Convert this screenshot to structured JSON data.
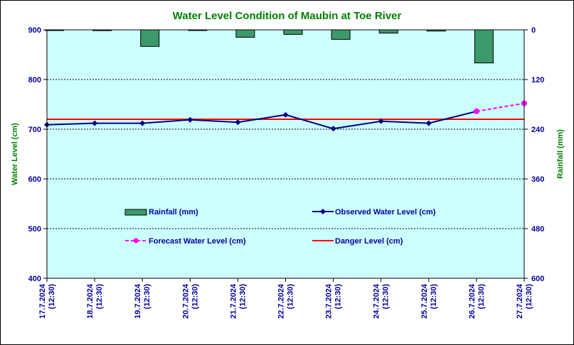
{
  "chart_data": {
    "type": "line",
    "title": "Water Level Condition of  Maubin at Toe River",
    "ylabel_left": "Water Level (cm)",
    "ylabel_right": "Rainfall (mm)",
    "ylim_left": [
      400,
      900
    ],
    "yticks_left": [
      "400",
      "500",
      "600",
      "700",
      "800",
      "900"
    ],
    "ylim_right_inverted": [
      0,
      600
    ],
    "yticks_right": [
      "0",
      "120",
      "240",
      "360",
      "480",
      "600"
    ],
    "categories": [
      {
        "date": "17.7.2024",
        "time": "(12:30)"
      },
      {
        "date": "18.7.2024",
        "time": "(12:30)"
      },
      {
        "date": "19.7.2024",
        "time": "(12:30)"
      },
      {
        "date": "20.7.2024",
        "time": "(12:30)"
      },
      {
        "date": "21.7.2024",
        "time": "(12:30)"
      },
      {
        "date": "22.7.2024",
        "time": "(12:30)"
      },
      {
        "date": "23.7.2024",
        "time": "(12:30)"
      },
      {
        "date": "24.7.2024",
        "time": "(12:30)"
      },
      {
        "date": "25.7.2024",
        "time": "(12:30)"
      },
      {
        "date": "26.7.2024",
        "time": "(12:30)"
      },
      {
        "date": "27.7.2024",
        "time": "(12:30)"
      }
    ],
    "series": [
      {
        "name": "Rainfall (mm)",
        "kind": "bar",
        "axis": "right",
        "color": "#3a9a6a",
        "values": [
          1,
          2,
          40,
          1,
          18,
          11,
          23,
          8,
          3,
          80,
          null
        ]
      },
      {
        "name": "Observed Water Level (cm)",
        "kind": "line",
        "axis": "left",
        "color": "#000080",
        "values": [
          709,
          712,
          712,
          719,
          714,
          729,
          701,
          716,
          712,
          736,
          null
        ]
      },
      {
        "name": "Forecast Water Level (cm)",
        "kind": "dashed",
        "axis": "left",
        "color": "#ff00ff",
        "values": [
          null,
          null,
          null,
          null,
          null,
          null,
          null,
          null,
          null,
          736,
          752
        ]
      },
      {
        "name": "Danger Level (cm)",
        "kind": "hline",
        "axis": "left",
        "color": "#ff0000",
        "value": 720
      }
    ],
    "grid": "horizontal dashed",
    "plot_background": "#ccffff"
  }
}
